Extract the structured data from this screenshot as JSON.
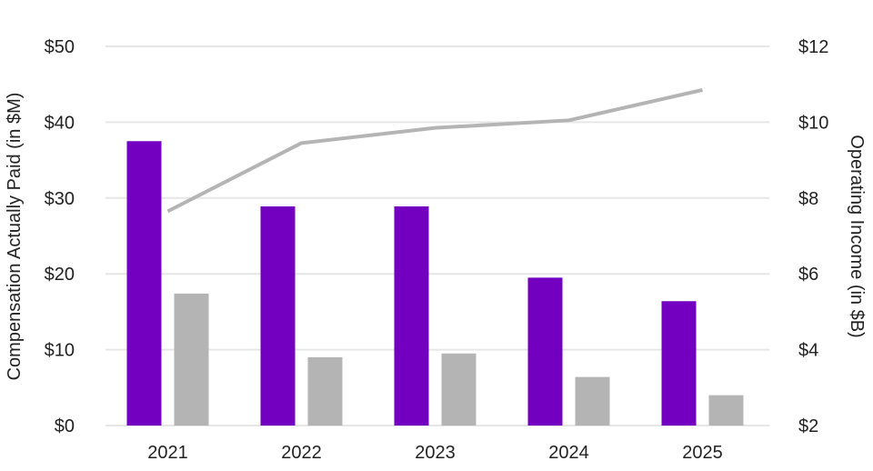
{
  "chart_data": {
    "type": "bar",
    "categories": [
      "2021",
      "2022",
      "2023",
      "2024",
      "2025"
    ],
    "series": [
      {
        "values": [
          37.5,
          28.9,
          28.9,
          19.5,
          16.4
        ],
        "color": "#7300C0",
        "axis": "left",
        "kind": "bar"
      },
      {
        "values": [
          17.4,
          9.0,
          9.5,
          6.4,
          4.0
        ],
        "color": "#B4B4B4",
        "axis": "left",
        "kind": "bar"
      },
      {
        "values": [
          7.65,
          9.45,
          9.85,
          10.05,
          10.85
        ],
        "color": "#B4B4B4",
        "axis": "right",
        "kind": "line"
      }
    ],
    "ylabel": "Compensation Actually Paid (in $M)",
    "y2label": "Operating Income (in $B)",
    "ylim": [
      0,
      50
    ],
    "y2lim": [
      2,
      12
    ],
    "yticks": [
      "$0",
      "$10",
      "$20",
      "$30",
      "$40",
      "$50"
    ],
    "y2ticks": [
      "$2",
      "$4",
      "$6",
      "$8",
      "$10",
      "$12"
    ],
    "grid": true,
    "gridColor": "#E6E6E6"
  }
}
